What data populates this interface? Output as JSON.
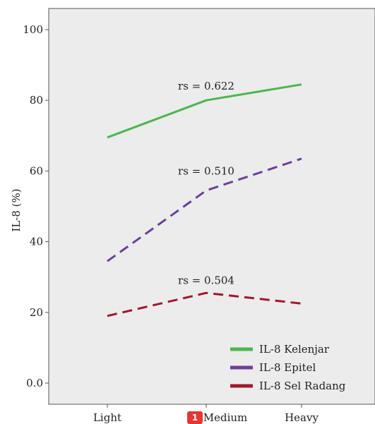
{
  "chart_data": {
    "type": "line",
    "title": "",
    "xlabel": "",
    "ylabel": "IL-8 (%)",
    "categories": [
      "Light",
      "Medium",
      "Heavy"
    ],
    "y_ticks": [
      "0.0",
      "20",
      "40",
      "60",
      "80",
      "100"
    ],
    "ylim": [
      0,
      100
    ],
    "grid": false,
    "legend_position": "bottom-right",
    "series": [
      {
        "name": "IL-8 Kelenjar",
        "values": [
          69.5,
          80,
          84.5
        ],
        "color": "#4cb64c",
        "dash": "solid"
      },
      {
        "name": "IL-8 Epitel",
        "values": [
          34.5,
          54.5,
          63.5
        ],
        "color": "#6a3f9e",
        "dash": "dashed"
      },
      {
        "name": "IL-8 Sel Radang",
        "values": [
          19,
          25.5,
          22.5
        ],
        "color": "#a0182a",
        "dash": "dashed"
      }
    ],
    "annotations": [
      {
        "text": "rs = 0.622",
        "x": "Medium",
        "y": 83
      },
      {
        "text": "rs = 0.510",
        "x": "Medium",
        "y": 59
      },
      {
        "text": "rs = 0.504",
        "x": "Medium",
        "y": 28
      }
    ]
  },
  "badge": {
    "label": "1"
  }
}
